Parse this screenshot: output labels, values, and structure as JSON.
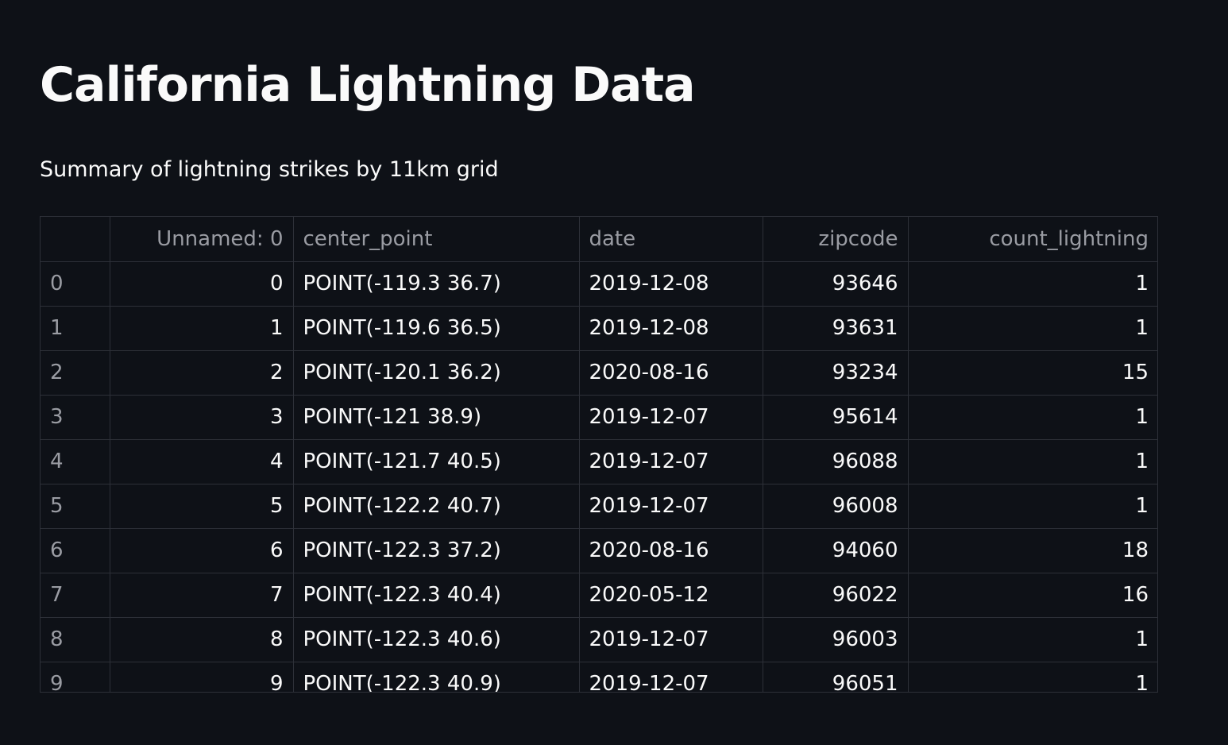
{
  "page": {
    "title": "California Lightning Data",
    "subtitle": "Summary of lightning strikes by 11km grid"
  },
  "table": {
    "columns": [
      "",
      "Unnamed: 0",
      "center_point",
      "date",
      "zipcode",
      "count_lightning"
    ],
    "rows": [
      {
        "index": "0",
        "unnamed": "0",
        "center_point": "POINT(-119.3 36.7)",
        "date": "2019-12-08",
        "zipcode": "93646",
        "count_lightning": "1"
      },
      {
        "index": "1",
        "unnamed": "1",
        "center_point": "POINT(-119.6 36.5)",
        "date": "2019-12-08",
        "zipcode": "93631",
        "count_lightning": "1"
      },
      {
        "index": "2",
        "unnamed": "2",
        "center_point": "POINT(-120.1 36.2)",
        "date": "2020-08-16",
        "zipcode": "93234",
        "count_lightning": "15"
      },
      {
        "index": "3",
        "unnamed": "3",
        "center_point": "POINT(-121 38.9)",
        "date": "2019-12-07",
        "zipcode": "95614",
        "count_lightning": "1"
      },
      {
        "index": "4",
        "unnamed": "4",
        "center_point": "POINT(-121.7 40.5)",
        "date": "2019-12-07",
        "zipcode": "96088",
        "count_lightning": "1"
      },
      {
        "index": "5",
        "unnamed": "5",
        "center_point": "POINT(-122.2 40.7)",
        "date": "2019-12-07",
        "zipcode": "96008",
        "count_lightning": "1"
      },
      {
        "index": "6",
        "unnamed": "6",
        "center_point": "POINT(-122.3 37.2)",
        "date": "2020-08-16",
        "zipcode": "94060",
        "count_lightning": "18"
      },
      {
        "index": "7",
        "unnamed": "7",
        "center_point": "POINT(-122.3 40.4)",
        "date": "2020-05-12",
        "zipcode": "96022",
        "count_lightning": "16"
      },
      {
        "index": "8",
        "unnamed": "8",
        "center_point": "POINT(-122.3 40.6)",
        "date": "2019-12-07",
        "zipcode": "96003",
        "count_lightning": "1"
      },
      {
        "index": "9",
        "unnamed": "9",
        "center_point": "POINT(-122.3 40.9)",
        "date": "2019-12-07",
        "zipcode": "96051",
        "count_lightning": "1"
      }
    ]
  },
  "colors": {
    "background": "#0e1117",
    "text": "#fafafa",
    "muted_text": "#9a9ca3",
    "grid_border": "#2d3038"
  }
}
